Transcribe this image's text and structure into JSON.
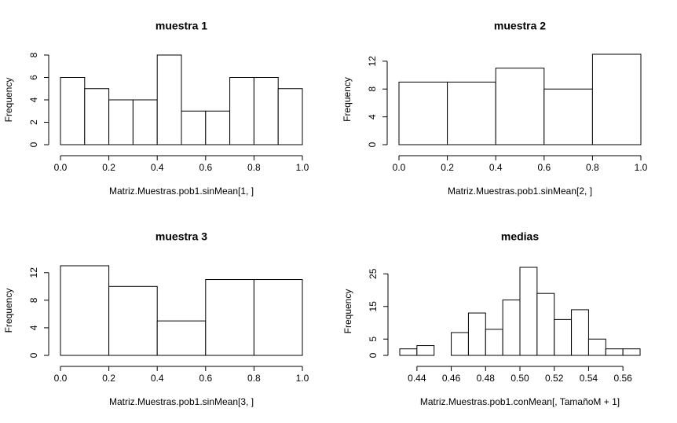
{
  "chart_data": [
    {
      "type": "histogram",
      "title": "muestra 1",
      "xlabel": "Matriz.Muestras.pob1.sinMean[1, ]",
      "ylabel": "Frequency",
      "bins": [
        0,
        0.1,
        0.2,
        0.3,
        0.4,
        0.5,
        0.6,
        0.7,
        0.8,
        0.9,
        1.0
      ],
      "values": [
        6,
        5,
        4,
        4,
        8,
        3,
        3,
        6,
        6,
        5
      ],
      "color": "#ffffff",
      "xlim": [
        0,
        1
      ],
      "ylim": [
        0,
        8
      ],
      "xticks": [
        {
          "value": 0,
          "label": "0.0"
        },
        0.2,
        0.4,
        0.6,
        0.8,
        {
          "value": 1,
          "label": "1.0"
        }
      ],
      "yticks": [
        0,
        2,
        4,
        6,
        8
      ]
    },
    {
      "type": "histogram",
      "title": "muestra 2",
      "xlabel": "Matriz.Muestras.pob1.sinMean[2, ]",
      "ylabel": "Frequency",
      "bins": [
        0,
        0.2,
        0.4,
        0.6,
        0.8,
        1.0
      ],
      "values": [
        9,
        9,
        11,
        8,
        13
      ],
      "color": "#ffffff",
      "xlim": [
        0,
        1
      ],
      "ylim": [
        0,
        13
      ],
      "xticks": [
        {
          "value": 0,
          "label": "0.0"
        },
        0.2,
        0.4,
        0.6,
        0.8,
        {
          "value": 1,
          "label": "1.0"
        }
      ],
      "yticks": [
        0,
        4,
        8,
        12
      ]
    },
    {
      "type": "histogram",
      "title": "muestra 3",
      "xlabel": "Matriz.Muestras.pob1.sinMean[3, ]",
      "ylabel": "Frequency",
      "bins": [
        0,
        0.2,
        0.4,
        0.6,
        0.8,
        1.0
      ],
      "values": [
        13,
        10,
        5,
        11,
        11
      ],
      "color": "#ffffff",
      "xlim": [
        0,
        1
      ],
      "ylim": [
        0,
        13
      ],
      "xticks": [
        {
          "value": 0,
          "label": "0.0"
        },
        0.2,
        0.4,
        0.6,
        0.8,
        {
          "value": 1,
          "label": "1.0"
        }
      ],
      "yticks": [
        0,
        4,
        8,
        12
      ]
    },
    {
      "type": "histogram",
      "title": "medias",
      "xlabel": "Matriz.Muestras.pob1.conMean[, TamañoM + 1]",
      "ylabel": "Frequency",
      "bins": [
        0.43,
        0.44,
        0.45,
        0.46,
        0.47,
        0.48,
        0.49,
        0.5,
        0.51,
        0.52,
        0.53,
        0.54,
        0.55,
        0.56,
        0.57
      ],
      "values": [
        2,
        3,
        0,
        7,
        13,
        8,
        17,
        27,
        19,
        11,
        14,
        5,
        2,
        2
      ],
      "color": "#ffffff",
      "xlim": [
        0.43,
        0.57
      ],
      "ylim": [
        0,
        27
      ],
      "xticks": [
        0.44,
        0.46,
        0.48,
        {
          "value": 0.5,
          "label": "0.50"
        },
        0.52,
        0.54,
        0.56
      ],
      "yticks": [
        0,
        5,
        15,
        25
      ]
    }
  ]
}
